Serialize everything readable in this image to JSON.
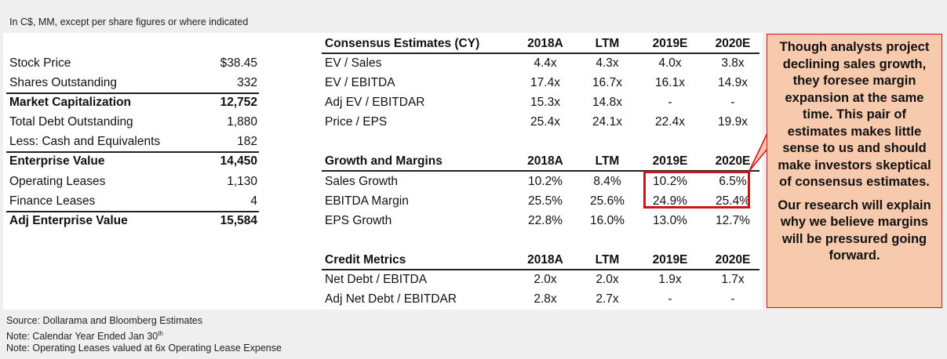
{
  "units_note": "In C$, MM, except per share figures or where indicated",
  "cap_table": [
    {
      "label": "Stock Price",
      "value": "$38.45"
    },
    {
      "label": "Shares Outstanding",
      "value": "332"
    },
    {
      "label": "Market Capitalization",
      "value": "12,752"
    },
    {
      "label": "Total Debt Outstanding",
      "value": "1,880"
    },
    {
      "label": "Less: Cash and Equivalents",
      "value": "182"
    },
    {
      "label": "Enterprise Value",
      "value": "14,450"
    },
    {
      "label": "Operating Leases",
      "value": "1,130"
    },
    {
      "label": "Finance Leases",
      "value": "4"
    },
    {
      "label": "Adj Enterprise Value",
      "value": "15,584"
    }
  ],
  "consensus": {
    "title": "Consensus Estimates (CY)",
    "columns": [
      "2018A",
      "LTM",
      "2019E",
      "2020E"
    ],
    "rows": [
      {
        "label": "EV / Sales",
        "values": [
          "4.4x",
          "4.3x",
          "4.0x",
          "3.8x"
        ]
      },
      {
        "label": "EV / EBITDA",
        "values": [
          "17.4x",
          "16.7x",
          "16.1x",
          "14.9x"
        ]
      },
      {
        "label": "Adj EV / EBITDAR",
        "values": [
          "15.3x",
          "14.8x",
          "-",
          "-"
        ]
      },
      {
        "label": "Price / EPS",
        "values": [
          "25.4x",
          "24.1x",
          "22.4x",
          "19.9x"
        ]
      }
    ]
  },
  "growth": {
    "title": "Growth and Margins",
    "columns": [
      "2018A",
      "LTM",
      "2019E",
      "2020E"
    ],
    "rows": [
      {
        "label": "Sales Growth",
        "values": [
          "10.2%",
          "8.4%",
          "10.2%",
          "6.5%"
        ]
      },
      {
        "label": "EBITDA Margin",
        "values": [
          "25.5%",
          "25.6%",
          "24.9%",
          "25.4%"
        ]
      },
      {
        "label": "EPS Growth",
        "values": [
          "22.8%",
          "16.0%",
          "13.0%",
          "12.7%"
        ]
      }
    ]
  },
  "credit": {
    "title": "Credit Metrics",
    "columns": [
      "2018A",
      "LTM",
      "2019E",
      "2020E"
    ],
    "rows": [
      {
        "label": "Net Debt / EBITDA",
        "values": [
          "2.0x",
          "2.0x",
          "1.9x",
          "1.7x"
        ]
      },
      {
        "label": "Adj Net Debt / EBITDAR",
        "values": [
          "2.8x",
          "2.7x",
          "-",
          "-"
        ]
      }
    ]
  },
  "callout": {
    "paragraph1": "Though analysts project declining sales growth, they foresee margin expansion at the same time. This pair of estimates makes little sense to us and should make investors skeptical of consensus estimates.",
    "paragraph2": "Our research will explain why we believe margins will be pressured going forward."
  },
  "notes": {
    "source": "Source: Dollarama and Bloomberg Estimates",
    "calendar": "Note: Calendar Year Ended Jan 30",
    "calendar_sup": "th",
    "leases": "Note: Operating Leases valued at 6x Operating Lease Expense"
  },
  "colors": {
    "highlight": "#d0121b",
    "callout_bg": "#f7c9ad",
    "background": "#efefef"
  }
}
